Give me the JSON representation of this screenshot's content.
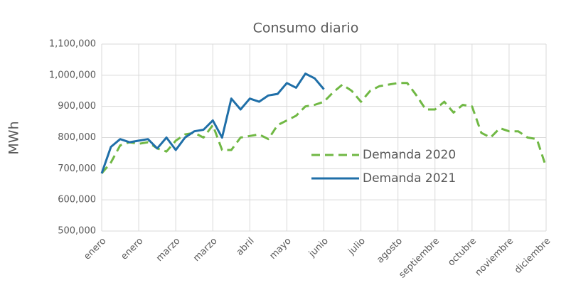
{
  "chart_data": {
    "type": "line",
    "title": "Consumo diario",
    "y_label": "MWh",
    "x": [
      0,
      1,
      2,
      3,
      4,
      5,
      6,
      7,
      8,
      9,
      10,
      11,
      12,
      13,
      14,
      15,
      16,
      17,
      18,
      19,
      20,
      21,
      22,
      23,
      24,
      25,
      26,
      27,
      28,
      29,
      30,
      31,
      32,
      33,
      34,
      35,
      36,
      37,
      38,
      39,
      40,
      41,
      42,
      43,
      44,
      45,
      46,
      47,
      48
    ],
    "xlim": [
      0,
      48
    ],
    "xticks": [
      {
        "value": 0,
        "label": "enero"
      },
      {
        "value": 4,
        "label": "enero"
      },
      {
        "value": 8,
        "label": "marzo"
      },
      {
        "value": 12,
        "label": "marzo"
      },
      {
        "value": 16,
        "label": "abril"
      },
      {
        "value": 20,
        "label": "mayo"
      },
      {
        "value": 24,
        "label": "junio"
      },
      {
        "value": 28,
        "label": "julio"
      },
      {
        "value": 32,
        "label": "agosto"
      },
      {
        "value": 36,
        "label": "septiembre"
      },
      {
        "value": 40,
        "label": "octubre"
      },
      {
        "value": 44,
        "label": "noviembre"
      },
      {
        "value": 48,
        "label": "diciembre"
      }
    ],
    "ylim": [
      500000,
      1100000
    ],
    "yticks": [
      {
        "value": 500000,
        "label": "500,000"
      },
      {
        "value": 600000,
        "label": "600,000"
      },
      {
        "value": 700000,
        "label": "700,000"
      },
      {
        "value": 800000,
        "label": "800,000"
      },
      {
        "value": 900000,
        "label": "900,000"
      },
      {
        "value": 1000000,
        "label": "1,000,000"
      },
      {
        "value": 1100000,
        "label": "1,100,000"
      }
    ],
    "grid": true,
    "legend": "right",
    "series": [
      {
        "name": "Demanda 2020",
        "color": "#70b844",
        "dash": true,
        "values": [
          685000,
          720000,
          775000,
          785000,
          780000,
          785000,
          765000,
          755000,
          790000,
          810000,
          815000,
          800000,
          840000,
          760000,
          760000,
          800000,
          805000,
          810000,
          795000,
          840000,
          855000,
          870000,
          900000,
          905000,
          915000,
          945000,
          970000,
          950000,
          915000,
          950000,
          965000,
          970000,
          975000,
          975000,
          935000,
          890000,
          890000,
          915000,
          880000,
          905000,
          900000,
          815000,
          800000,
          830000,
          820000,
          820000,
          800000,
          795000,
          705000
        ]
      },
      {
        "name": "Demanda 2021",
        "color": "#1f6fa8",
        "dash": false,
        "values": [
          685000,
          770000,
          795000,
          785000,
          790000,
          795000,
          765000,
          800000,
          760000,
          800000,
          820000,
          825000,
          855000,
          800000,
          925000,
          890000,
          925000,
          915000,
          935000,
          940000,
          975000,
          960000,
          1005000,
          990000,
          955000,
          null,
          null,
          null,
          null,
          null,
          null,
          null,
          null,
          null,
          null,
          null,
          null,
          null,
          null,
          null,
          null,
          null,
          null,
          null,
          null,
          null,
          null,
          null,
          null
        ]
      }
    ]
  }
}
